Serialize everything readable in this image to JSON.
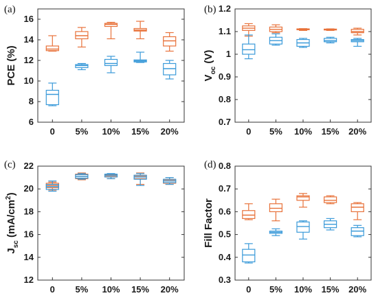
{
  "colors": {
    "orange": "#e8723a",
    "blue": "#3a9ad9",
    "axis": "#333333"
  },
  "chart_data": [
    {
      "panel_label": "(a)",
      "type": "box",
      "ylabel": "PCE (%)",
      "categories": [
        "0",
        "5%",
        "10%",
        "15%",
        "20%"
      ],
      "ylim": [
        6,
        17
      ],
      "yticks": [
        "6",
        "8",
        "10",
        "12",
        "14",
        "16"
      ],
      "series": [
        {
          "color": "orange",
          "boxes": [
            {
              "min": 12.9,
              "q1": 12.95,
              "median": 13.1,
              "q3": 13.4,
              "max": 14.4
            },
            {
              "min": 13.3,
              "q1": 14.1,
              "median": 14.4,
              "q3": 14.8,
              "max": 15.2
            },
            {
              "min": 14.1,
              "q1": 15.3,
              "median": 15.5,
              "q3": 15.6,
              "max": 15.7
            },
            {
              "min": 14.1,
              "q1": 14.85,
              "median": 14.95,
              "q3": 15.1,
              "max": 15.8
            },
            {
              "min": 12.9,
              "q1": 13.4,
              "median": 13.9,
              "q3": 14.3,
              "max": 14.7
            }
          ]
        },
        {
          "color": "blue",
          "boxes": [
            {
              "min": 7.6,
              "q1": 7.7,
              "median": 8.7,
              "q3": 9.1,
              "max": 9.8
            },
            {
              "min": 11.1,
              "q1": 11.3,
              "median": 11.5,
              "q3": 11.6,
              "max": 11.7
            },
            {
              "min": 10.8,
              "q1": 11.5,
              "median": 11.7,
              "q3": 12.1,
              "max": 12.4
            },
            {
              "min": 11.8,
              "q1": 11.85,
              "median": 11.95,
              "q3": 12.05,
              "max": 12.8
            },
            {
              "min": 10.2,
              "q1": 10.6,
              "median": 11.2,
              "q3": 11.7,
              "max": 12.0
            }
          ]
        }
      ]
    },
    {
      "panel_label": "(b)",
      "type": "box",
      "ylabel_main": "V",
      "ylabel_sub": "oc",
      "ylabel_unit": " (V)",
      "categories": [
        "0",
        "5%",
        "10%",
        "15%",
        "20%"
      ],
      "ylim": [
        0.7,
        1.2
      ],
      "yticks": [
        "0.7",
        "0.8",
        "0.9",
        "1",
        "1.1",
        "1.2"
      ],
      "series": [
        {
          "color": "orange",
          "boxes": [
            {
              "min": 1.08,
              "q1": 1.105,
              "median": 1.115,
              "q3": 1.125,
              "max": 1.135
            },
            {
              "min": 1.095,
              "q1": 1.1,
              "median": 1.11,
              "q3": 1.12,
              "max": 1.13
            },
            {
              "min": 1.105,
              "q1": 1.108,
              "median": 1.11,
              "q3": 1.112,
              "max": 1.113
            },
            {
              "min": 1.105,
              "q1": 1.107,
              "median": 1.109,
              "q3": 1.111,
              "max": 1.112
            },
            {
              "min": 1.085,
              "q1": 1.095,
              "median": 1.1,
              "q3": 1.11,
              "max": 1.115
            }
          ]
        },
        {
          "color": "blue",
          "boxes": [
            {
              "min": 0.98,
              "q1": 1.0,
              "median": 1.02,
              "q3": 1.045,
              "max": 1.085
            },
            {
              "min": 1.04,
              "q1": 1.045,
              "median": 1.06,
              "q3": 1.075,
              "max": 1.09
            },
            {
              "min": 1.03,
              "q1": 1.035,
              "median": 1.05,
              "q3": 1.065,
              "max": 1.07
            },
            {
              "min": 1.05,
              "q1": 1.055,
              "median": 1.06,
              "q3": 1.07,
              "max": 1.075
            },
            {
              "min": 1.035,
              "q1": 1.055,
              "median": 1.06,
              "q3": 1.065,
              "max": 1.07
            }
          ]
        }
      ]
    },
    {
      "panel_label": "(c)",
      "type": "box",
      "ylabel_main": "J",
      "ylabel_sub": "sc",
      "ylabel_unit": " (mA/cm",
      "ylabel_sup": "2",
      "ylabel_close": ")",
      "categories": [
        "0",
        "5%",
        "10%",
        "15%",
        "20%"
      ],
      "ylim": [
        12,
        22
      ],
      "yticks": [
        "12",
        "14",
        "16",
        "18",
        "20",
        "22"
      ],
      "series": [
        {
          "color": "orange",
          "boxes": [
            {
              "min": 19.9,
              "q1": 20.1,
              "median": 20.3,
              "q3": 20.5,
              "max": 20.6
            },
            {
              "min": 20.8,
              "q1": 20.9,
              "median": 21.1,
              "q3": 21.3,
              "max": 21.4
            },
            {
              "min": 20.9,
              "q1": 21.05,
              "median": 21.15,
              "q3": 21.25,
              "max": 21.3
            },
            {
              "min": 20.4,
              "q1": 20.9,
              "median": 21.1,
              "q3": 21.2,
              "max": 21.4
            },
            {
              "min": 20.4,
              "q1": 20.5,
              "median": 20.7,
              "q3": 20.8,
              "max": 21.0
            }
          ]
        },
        {
          "color": "blue",
          "boxes": [
            {
              "min": 19.8,
              "q1": 19.95,
              "median": 20.2,
              "q3": 20.4,
              "max": 20.7
            },
            {
              "min": 20.85,
              "q1": 20.95,
              "median": 21.1,
              "q3": 21.25,
              "max": 21.35
            },
            {
              "min": 20.9,
              "q1": 21.05,
              "median": 21.2,
              "q3": 21.3,
              "max": 21.35
            },
            {
              "min": 20.3,
              "q1": 20.85,
              "median": 21.05,
              "q3": 21.2,
              "max": 21.35
            },
            {
              "min": 20.4,
              "q1": 20.55,
              "median": 20.7,
              "q3": 20.85,
              "max": 21.0
            }
          ]
        }
      ]
    },
    {
      "panel_label": "(d)",
      "type": "box",
      "ylabel": "Fill Factor",
      "categories": [
        "0",
        "5%",
        "10%",
        "15%",
        "20%"
      ],
      "ylim": [
        0.3,
        0.8
      ],
      "yticks": [
        "0.3",
        "0.4",
        "0.5",
        "0.6",
        "0.7",
        "0.8"
      ],
      "series": [
        {
          "color": "orange",
          "boxes": [
            {
              "min": 0.565,
              "q1": 0.57,
              "median": 0.585,
              "q3": 0.605,
              "max": 0.635
            },
            {
              "min": 0.56,
              "q1": 0.6,
              "median": 0.615,
              "q3": 0.635,
              "max": 0.655
            },
            {
              "min": 0.62,
              "q1": 0.65,
              "median": 0.665,
              "q3": 0.67,
              "max": 0.68
            },
            {
              "min": 0.635,
              "q1": 0.64,
              "median": 0.65,
              "q3": 0.665,
              "max": 0.67
            },
            {
              "min": 0.565,
              "q1": 0.6,
              "median": 0.62,
              "q3": 0.635,
              "max": 0.64
            }
          ]
        },
        {
          "color": "blue",
          "boxes": [
            {
              "min": 0.375,
              "q1": 0.38,
              "median": 0.41,
              "q3": 0.435,
              "max": 0.46
            },
            {
              "min": 0.495,
              "q1": 0.505,
              "median": 0.51,
              "q3": 0.515,
              "max": 0.525
            },
            {
              "min": 0.48,
              "q1": 0.51,
              "median": 0.535,
              "q3": 0.555,
              "max": 0.56
            },
            {
              "min": 0.52,
              "q1": 0.53,
              "median": 0.545,
              "q3": 0.56,
              "max": 0.57
            },
            {
              "min": 0.49,
              "q1": 0.495,
              "median": 0.515,
              "q3": 0.53,
              "max": 0.54
            }
          ]
        }
      ]
    }
  ]
}
